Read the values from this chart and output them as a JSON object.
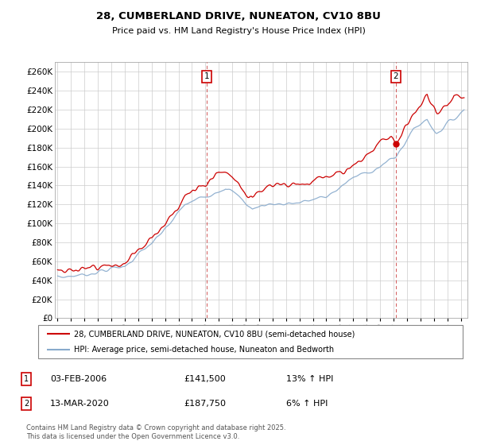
{
  "title_line1": "28, CUMBERLAND DRIVE, NUNEATON, CV10 8BU",
  "title_line2": "Price paid vs. HM Land Registry's House Price Index (HPI)",
  "ylim": [
    0,
    270000
  ],
  "yticks": [
    0,
    20000,
    40000,
    60000,
    80000,
    100000,
    120000,
    140000,
    160000,
    180000,
    200000,
    220000,
    240000,
    260000
  ],
  "sale1_year": 2006.08,
  "sale1_price": 141500,
  "sale1_date": "03-FEB-2006",
  "sale1_hpi_change": "13% ↑ HPI",
  "sale2_year": 2020.17,
  "sale2_price": 187750,
  "sale2_date": "13-MAR-2020",
  "sale2_hpi_change": "6% ↑ HPI",
  "legend_property": "28, CUMBERLAND DRIVE, NUNEATON, CV10 8BU (semi-detached house)",
  "legend_hpi": "HPI: Average price, semi-detached house, Nuneaton and Bedworth",
  "property_color": "#cc0000",
  "hpi_color": "#88aacc",
  "footnote_line1": "Contains HM Land Registry data © Crown copyright and database right 2025.",
  "footnote_line2": "This data is licensed under the Open Government Licence v3.0.",
  "grid_color": "#cccccc",
  "chart_bg": "#ffffff"
}
